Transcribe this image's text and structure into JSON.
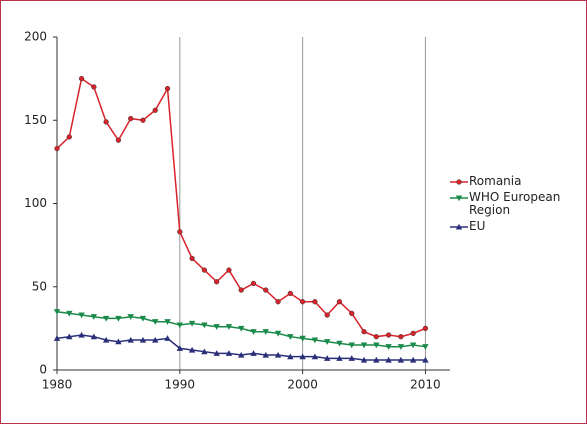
{
  "chart_data": {
    "type": "line",
    "x": [
      1980,
      1981,
      1982,
      1983,
      1984,
      1985,
      1986,
      1987,
      1988,
      1989,
      1990,
      1991,
      1992,
      1993,
      1994,
      1995,
      1996,
      1997,
      1998,
      1999,
      2000,
      2001,
      2002,
      2003,
      2004,
      2005,
      2006,
      2007,
      2008,
      2009,
      2010
    ],
    "series": [
      {
        "name": "Romania",
        "color": "#d9232a",
        "marker": "circle",
        "values": [
          133,
          140,
          175,
          170,
          149,
          138,
          151,
          150,
          156,
          169,
          83,
          67,
          60,
          53,
          60,
          48,
          52,
          48,
          41,
          46,
          41,
          41,
          33,
          41,
          34,
          23,
          20,
          21,
          20,
          22,
          25
        ]
      },
      {
        "name": "WHO European Region",
        "color": "#1a8a4a",
        "marker": "triangle-down",
        "values": [
          35,
          34,
          33,
          32,
          31,
          31,
          32,
          31,
          29,
          29,
          27,
          28,
          27,
          26,
          26,
          25,
          23,
          23,
          22,
          20,
          19,
          18,
          17,
          16,
          15,
          15,
          15,
          14,
          14,
          15,
          14
        ]
      },
      {
        "name": "EU",
        "color": "#2a2f7a",
        "marker": "triangle-up",
        "values": [
          19,
          20,
          21,
          20,
          18,
          17,
          18,
          18,
          18,
          19,
          13,
          12,
          11,
          10,
          10,
          9,
          10,
          9,
          9,
          8,
          8,
          8,
          7,
          7,
          7,
          6,
          6,
          6,
          6,
          6,
          6
        ]
      }
    ],
    "xlim": [
      1980,
      2012
    ],
    "xticks": [
      1980,
      1990,
      2000,
      2010
    ],
    "ylim": [
      0,
      200
    ],
    "yticks": [
      0,
      50,
      100,
      150,
      200
    ],
    "grid": "x"
  }
}
